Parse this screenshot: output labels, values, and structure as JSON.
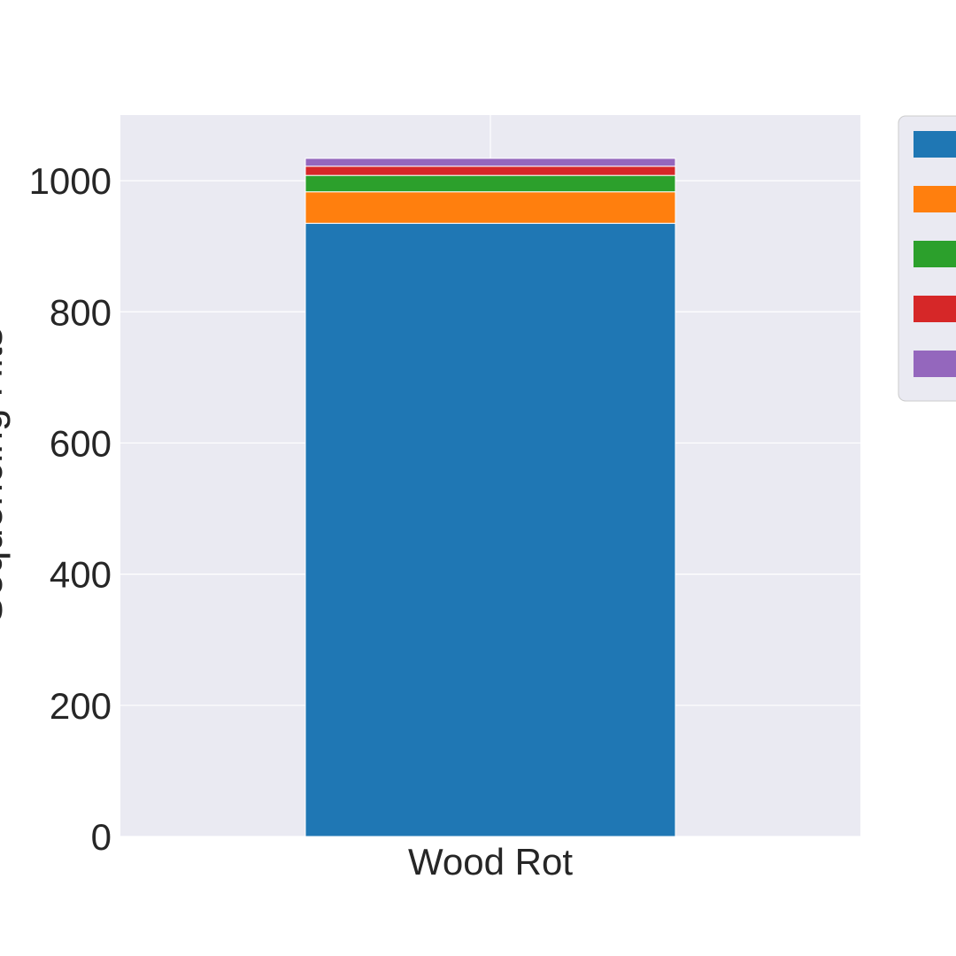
{
  "chart_data": {
    "type": "bar",
    "stacked": true,
    "categories": [
      "Wood Rot"
    ],
    "ylabel": "Sequencing Hits",
    "xlabel": "",
    "ylim": [
      0,
      1100
    ],
    "yticks": [
      0,
      200,
      400,
      600,
      800,
      1000
    ],
    "grid": true,
    "legend_position": "right",
    "series": [
      {
        "values": [
          935
        ],
        "color": "#1f77b4"
      },
      {
        "values": [
          48
        ],
        "color": "#ff7f0e"
      },
      {
        "values": [
          25
        ],
        "color": "#2ca02c"
      },
      {
        "values": [
          14
        ],
        "color": "#d62728"
      },
      {
        "values": [
          12
        ],
        "color": "#9467bd"
      }
    ]
  }
}
